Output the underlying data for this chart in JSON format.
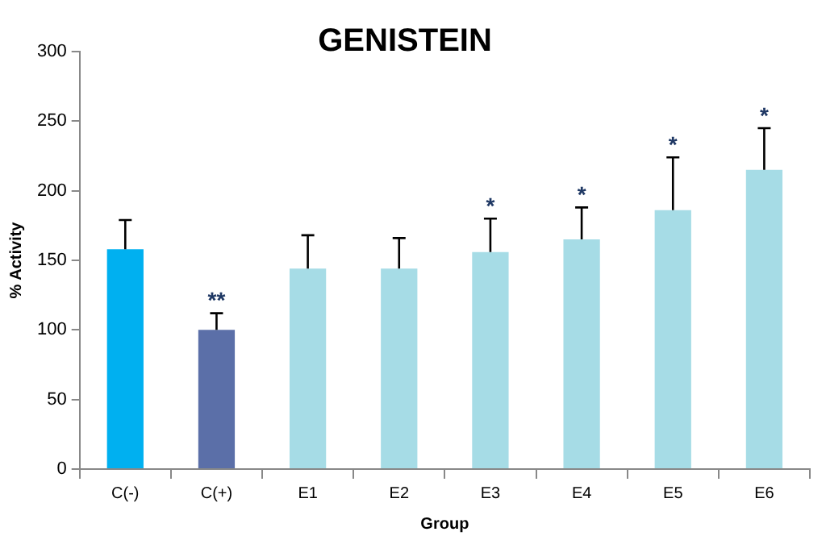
{
  "chart_data": {
    "type": "bar",
    "title": "GENISTEIN",
    "xlabel": "Group",
    "ylabel": "% Activity",
    "categories": [
      "C(-)",
      "C(+)",
      "E1",
      "E2",
      "E3",
      "E4",
      "E5",
      "E6"
    ],
    "values": [
      158,
      100,
      144,
      144,
      156,
      165,
      186,
      215
    ],
    "colors": [
      "#00b0f0",
      "#5b6fa8",
      "#a6dce6",
      "#a6dce6",
      "#a6dce6",
      "#a6dce6",
      "#a6dce6",
      "#a6dce6"
    ],
    "errors": [
      [
        158,
        179
      ],
      [
        100,
        112
      ],
      [
        144,
        168
      ],
      [
        144,
        166
      ],
      [
        156,
        180
      ],
      [
        165,
        188
      ],
      [
        186,
        224
      ],
      [
        215,
        245
      ]
    ],
    "ylim": [
      0,
      300
    ],
    "yticks": [
      0,
      50,
      100,
      150,
      200,
      250,
      300
    ],
    "grid": false,
    "legend": false,
    "annotations": [
      {
        "text": "**",
        "x": "C(+)",
        "y": 112
      },
      {
        "text": "*",
        "x": "E3",
        "y": 180
      },
      {
        "text": "*",
        "x": "E4",
        "y": 188
      },
      {
        "text": "*",
        "x": "E5",
        "y": 224
      },
      {
        "text": "*",
        "x": "E6",
        "y": 245
      }
    ]
  }
}
